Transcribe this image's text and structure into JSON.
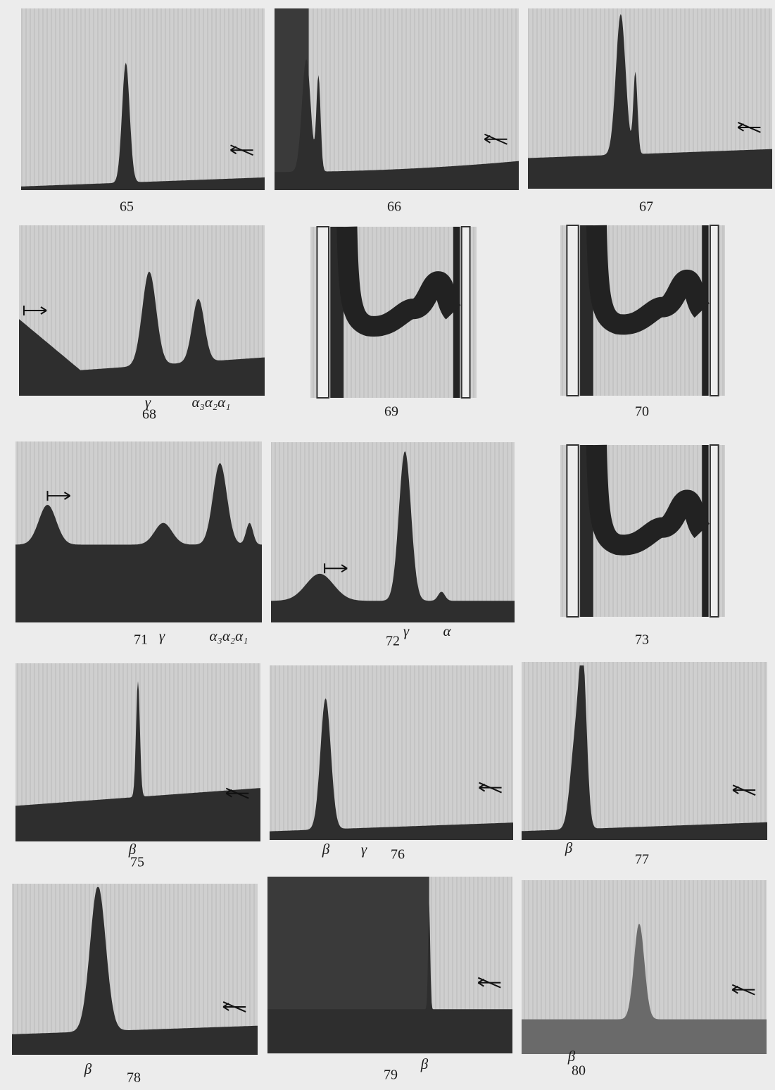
{
  "panels": [
    {
      "number": "65",
      "labels": []
    },
    {
      "number": "66",
      "labels": []
    },
    {
      "number": "67",
      "labels": []
    },
    {
      "number": "68",
      "labels": [
        "γ",
        "α₃α₂α₁"
      ]
    },
    {
      "number": "69",
      "labels": []
    },
    {
      "number": "70",
      "labels": []
    },
    {
      "number": "71",
      "labels": [
        "γ",
        "α₃α₂α₁"
      ]
    },
    {
      "number": "72",
      "labels": [
        "γ",
        "α"
      ]
    },
    {
      "number": "73",
      "labels": []
    },
    {
      "number": "75",
      "labels": [
        "β"
      ]
    },
    {
      "number": "76",
      "labels": [
        "β",
        "γ"
      ]
    },
    {
      "number": "77",
      "labels": [
        "β"
      ]
    },
    {
      "number": "78",
      "labels": [
        "β"
      ]
    },
    {
      "number": "79",
      "labels": [
        "β"
      ]
    },
    {
      "number": "80",
      "labels": [
        "β"
      ]
    }
  ]
}
